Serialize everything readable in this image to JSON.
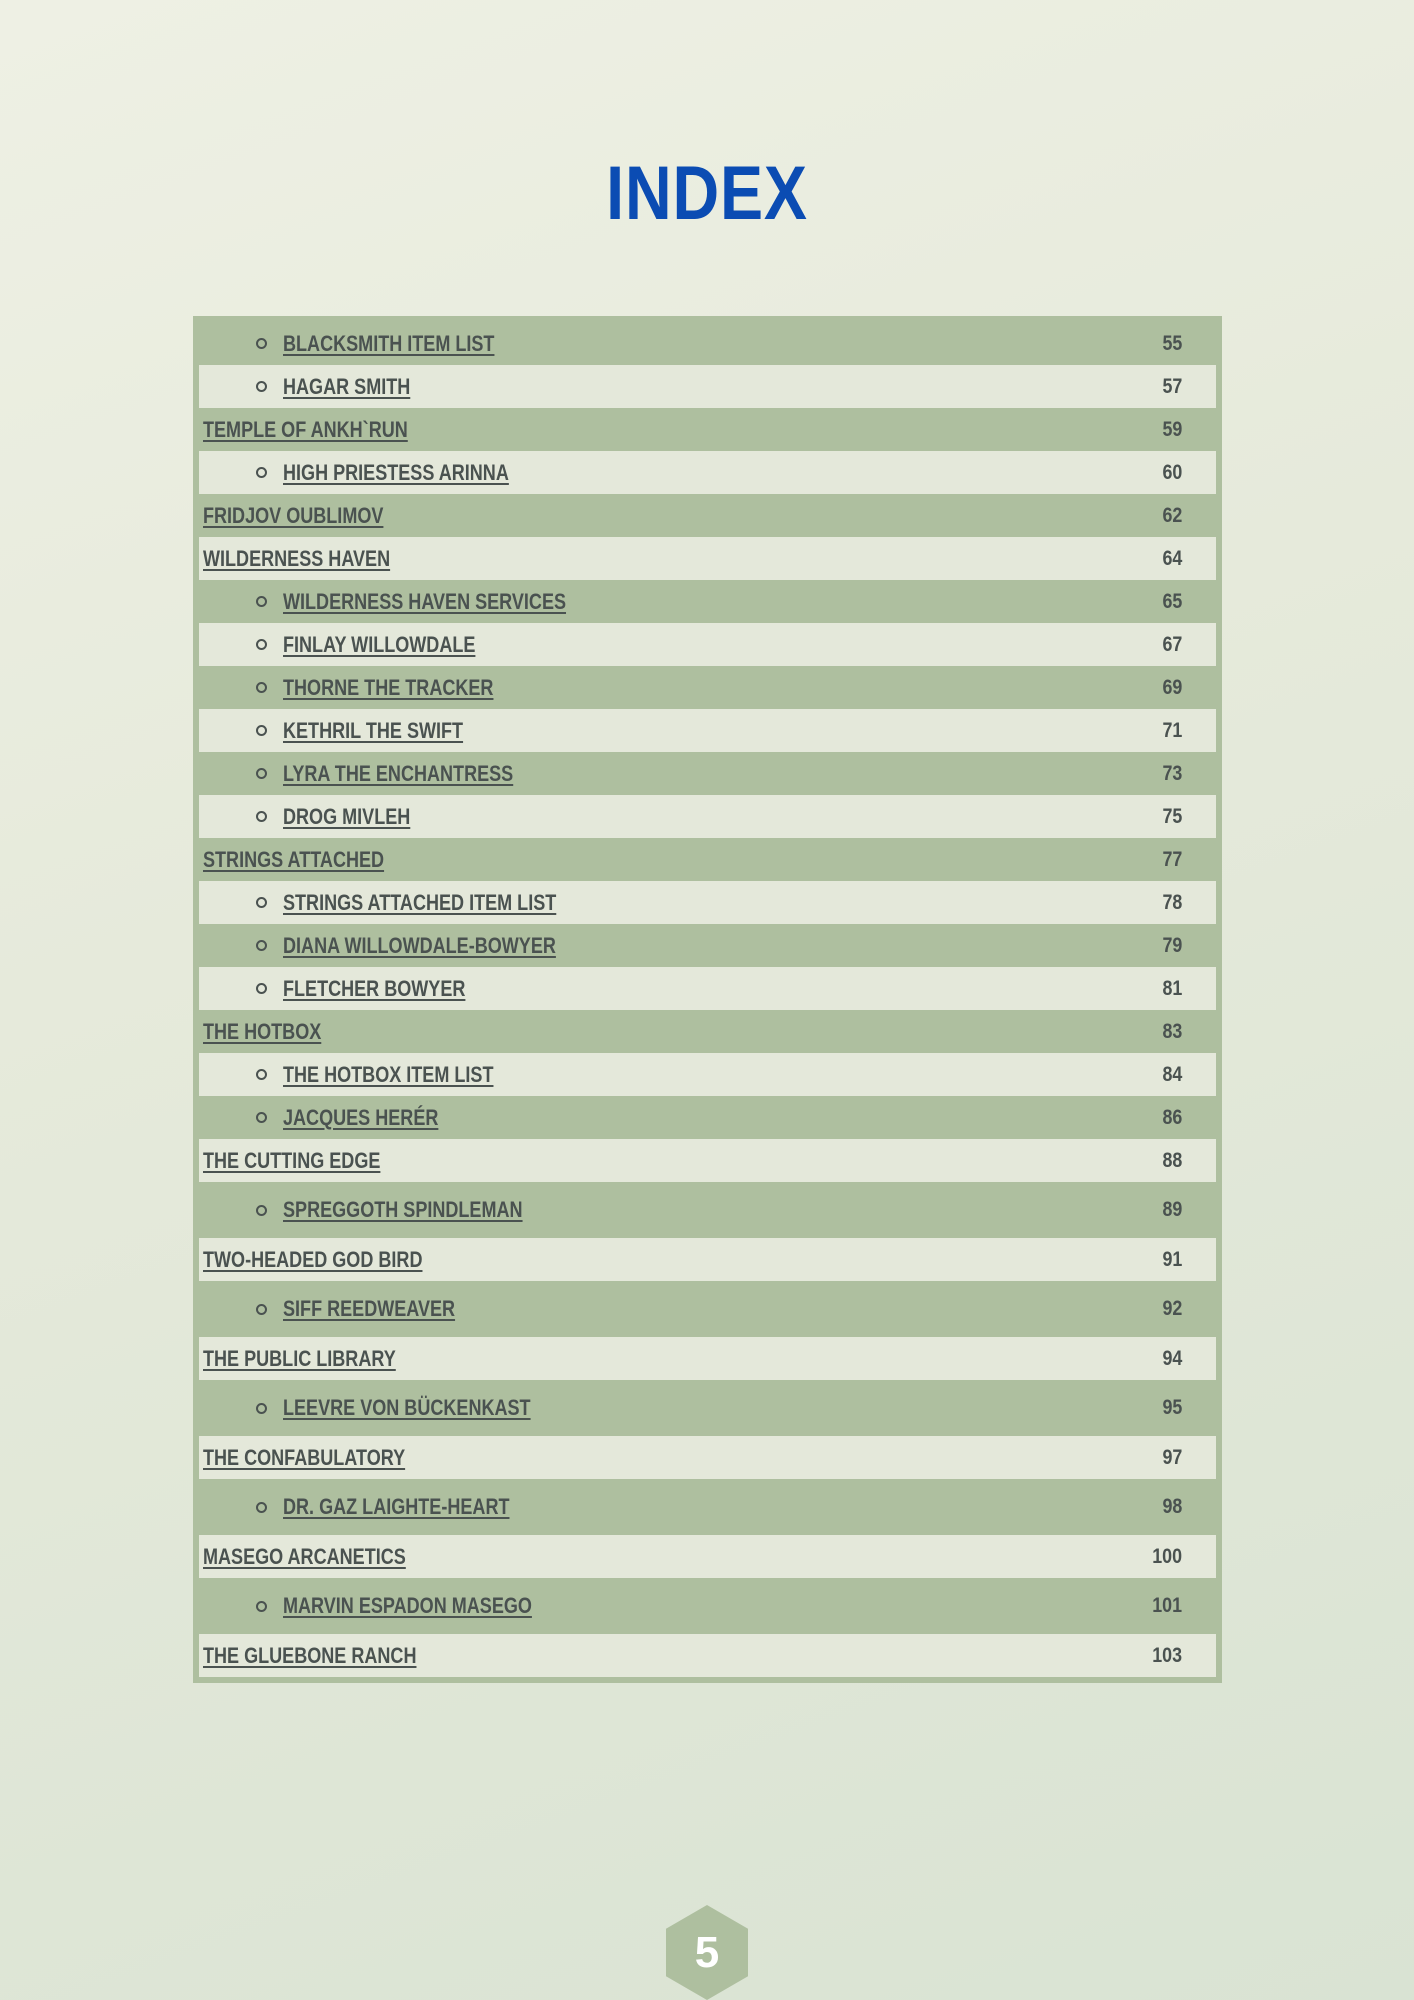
{
  "title": "INDEX",
  "page_number": "5",
  "colors": {
    "title": "#0b4cb3",
    "row_dark": "#aebf9f",
    "row_light": "#e4e8da",
    "text": "#4a5250"
  },
  "entries": [
    {
      "label": "BLACKSMITH ITEM LIST",
      "page": "55",
      "level": 2
    },
    {
      "label": "HAGAR SMITH",
      "page": "57",
      "level": 2
    },
    {
      "label": "TEMPLE OF ANKH`RUN",
      "page": "59",
      "level": 1
    },
    {
      "label": "HIGH PRIESTESS ARINNA",
      "page": "60",
      "level": 2
    },
    {
      "label": "FRIDJOV OUBLIMOV",
      "page": "62",
      "level": 1
    },
    {
      "label": "WILDERNESS HAVEN",
      "page": "64",
      "level": 1
    },
    {
      "label": "WILDERNESS HAVEN SERVICES",
      "page": "65",
      "level": 2
    },
    {
      "label": "FINLAY WILLOWDALE",
      "page": "67",
      "level": 2
    },
    {
      "label": "THORNE THE TRACKER",
      "page": "69",
      "level": 2
    },
    {
      "label": "KETHRIL THE SWIFT",
      "page": "71",
      "level": 2
    },
    {
      "label": "LYRA THE ENCHANTRESS",
      "page": "73",
      "level": 2
    },
    {
      "label": "DROG MIVLEH",
      "page": "75",
      "level": 2
    },
    {
      "label": "STRINGS ATTACHED",
      "page": "77",
      "level": 1
    },
    {
      "label": "STRINGS ATTACHED ITEM LIST",
      "page": "78",
      "level": 2
    },
    {
      "label": "DIANA WILLOWDALE-BOWYER",
      "page": "79",
      "level": 2
    },
    {
      "label": "FLETCHER BOWYER",
      "page": "81",
      "level": 2
    },
    {
      "label": "THE HOTBOX",
      "page": "83",
      "level": 1
    },
    {
      "label": "THE HOTBOX ITEM LIST",
      "page": "84",
      "level": 2
    },
    {
      "label": "JACQUES HERÉR",
      "page": "86",
      "level": 2
    },
    {
      "label": "THE CUTTING EDGE",
      "page": "88",
      "level": 1
    },
    {
      "label": "SPREGGOTH SPINDLEMAN",
      "page": "89",
      "level": 2
    },
    {
      "label": "TWO-HEADED GOD BIRD",
      "page": "91",
      "level": 1
    },
    {
      "label": "SIFF REEDWEAVER",
      "page": "92",
      "level": 2
    },
    {
      "label": "THE PUBLIC LIBRARY",
      "page": "94",
      "level": 1
    },
    {
      "label": "LEEVRE VON BÜCKENKAST",
      "page": "95",
      "level": 2
    },
    {
      "label": "THE CONFABULATORY",
      "page": "97",
      "level": 1
    },
    {
      "label": "DR. GAZ LAIGHTE-HEART",
      "page": "98",
      "level": 2
    },
    {
      "label": "MASEGO ARCANETICS",
      "page": "100",
      "level": 1
    },
    {
      "label": "MARVIN ESPADON MASEGO",
      "page": "101",
      "level": 2
    },
    {
      "label": "THE GLUEBONE RANCH",
      "page": "103",
      "level": 1
    }
  ]
}
